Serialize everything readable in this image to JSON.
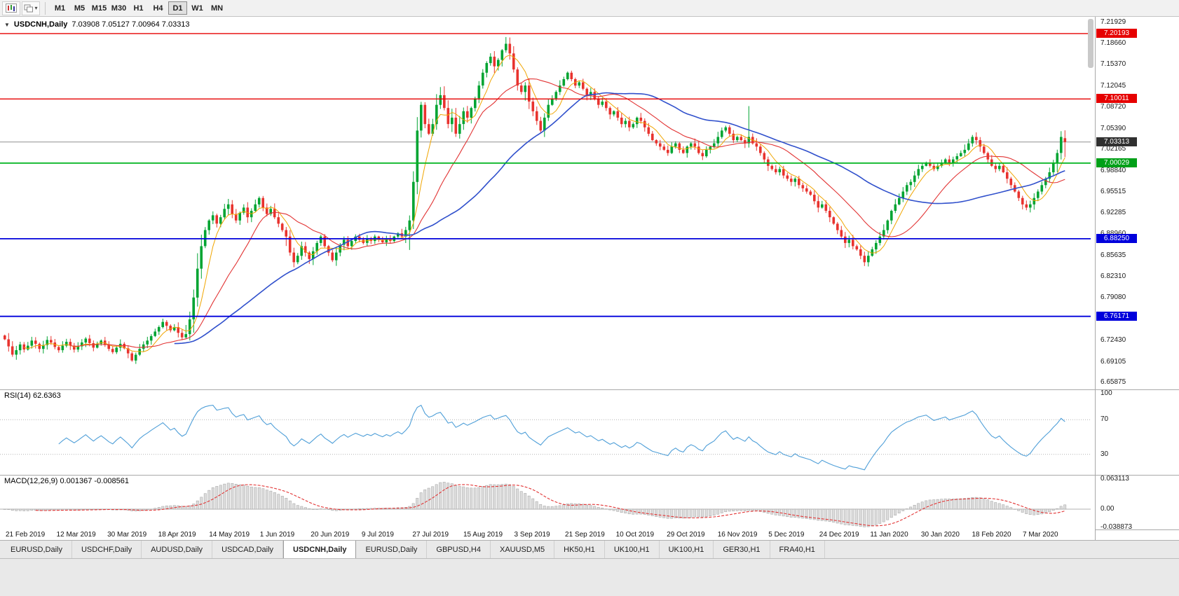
{
  "toolbar": {
    "timeframes": [
      "M1",
      "M5",
      "M15",
      "M30",
      "H1",
      "H4",
      "D1",
      "W1",
      "MN"
    ],
    "active_timeframe": "D1"
  },
  "chart": {
    "symbol_label": "USDCNH,Daily",
    "ohlc_text": "7.03908 7.05127 7.00964 7.03313"
  },
  "chart_data": {
    "type": "candlestick",
    "symbol": "USDCNH",
    "timeframe": "Daily",
    "last_bar": {
      "open": 7.03908,
      "high": 7.05127,
      "low": 7.00964,
      "close": 7.03313
    },
    "ylim": [
      6.648,
      7.228
    ],
    "y_ticks": [
      "7.21929",
      "7.18660",
      "7.15370",
      "7.12045",
      "7.08720",
      "7.05390",
      "7.02165",
      "6.98840",
      "6.95515",
      "6.92285",
      "6.88960",
      "6.85635",
      "6.82310",
      "6.79080",
      "6.75755",
      "6.72430",
      "6.69105",
      "6.65875"
    ],
    "x_labels": [
      "21 Feb 2019",
      "12 Mar 2019",
      "30 Mar 2019",
      "18 Apr 2019",
      "14 May 2019",
      "1 Jun 2019",
      "20 Jun 2019",
      "9 Jul 2019",
      "27 Jul 2019",
      "15 Aug 2019",
      "3 Sep 2019",
      "21 Sep 2019",
      "10 Oct 2019",
      "29 Oct 2019",
      "16 Nov 2019",
      "5 Dec 2019",
      "24 Dec 2019",
      "11 Jan 2020",
      "30 Jan 2020",
      "18 Feb 2020",
      "7 Mar 2020"
    ],
    "closes": [
      6.726,
      6.715,
      6.702,
      6.709,
      6.718,
      6.71,
      6.716,
      6.724,
      6.719,
      6.711,
      6.717,
      6.725,
      6.721,
      6.714,
      6.709,
      6.716,
      6.722,
      6.716,
      6.71,
      6.715,
      6.721,
      6.727,
      6.72,
      6.713,
      6.719,
      6.724,
      6.718,
      6.711,
      6.706,
      6.713,
      6.719,
      6.712,
      6.704,
      6.693,
      6.702,
      6.711,
      6.718,
      6.724,
      6.731,
      6.738,
      6.745,
      6.753,
      6.747,
      6.74,
      6.745,
      6.736,
      6.729,
      6.734,
      6.757,
      6.791,
      6.836,
      6.871,
      6.896,
      6.911,
      6.919,
      6.906,
      6.916,
      6.929,
      6.936,
      6.921,
      6.911,
      6.923,
      6.931,
      6.916,
      6.926,
      6.936,
      6.946,
      6.931,
      6.921,
      6.929,
      6.916,
      6.906,
      6.896,
      6.886,
      6.861,
      6.846,
      6.856,
      6.871,
      6.861,
      6.851,
      6.863,
      6.876,
      6.886,
      6.871,
      6.861,
      6.849,
      6.861,
      6.873,
      6.881,
      6.871,
      6.879,
      6.886,
      6.881,
      6.876,
      6.883,
      6.879,
      6.886,
      6.881,
      6.877,
      6.883,
      6.879,
      6.886,
      6.891,
      6.886,
      6.896,
      6.911,
      6.971,
      7.051,
      7.091,
      7.061,
      7.046,
      7.061,
      7.091,
      7.106,
      7.086,
      7.061,
      7.071,
      7.046,
      7.061,
      7.081,
      7.071,
      7.086,
      7.101,
      7.121,
      7.141,
      7.156,
      7.166,
      7.151,
      7.161,
      7.176,
      7.186,
      7.171,
      7.146,
      7.121,
      7.111,
      7.121,
      7.096,
      7.081,
      7.066,
      7.051,
      7.071,
      7.091,
      7.101,
      7.111,
      7.121,
      7.131,
      7.141,
      7.131,
      7.121,
      7.126,
      7.116,
      7.106,
      7.111,
      7.101,
      7.091,
      7.096,
      7.086,
      7.076,
      7.081,
      7.071,
      7.061,
      7.066,
      7.056,
      7.061,
      7.071,
      7.066,
      7.056,
      7.046,
      7.036,
      7.031,
      7.026,
      7.021,
      7.016,
      7.026,
      7.031,
      7.021,
      7.016,
      7.026,
      7.031,
      7.026,
      7.016,
      7.011,
      7.021,
      7.026,
      7.031,
      7.041,
      7.051,
      7.056,
      7.046,
      7.036,
      7.041,
      7.036,
      7.031,
      7.041,
      7.031,
      7.026,
      7.016,
      7.006,
      6.996,
      6.991,
      6.986,
      6.991,
      6.981,
      6.976,
      6.971,
      6.976,
      6.966,
      6.961,
      6.956,
      6.951,
      6.941,
      6.931,
      6.936,
      6.926,
      6.916,
      6.906,
      6.896,
      6.886,
      6.876,
      6.881,
      6.871,
      6.866,
      6.856,
      6.846,
      6.856,
      6.866,
      6.876,
      6.886,
      6.896,
      6.911,
      6.926,
      6.936,
      6.946,
      6.956,
      6.966,
      6.971,
      6.981,
      6.991,
      6.996,
      7.001,
      6.996,
      6.991,
      6.996,
      7.001,
      7.006,
      7.001,
      7.006,
      7.011,
      7.016,
      7.021,
      7.031,
      7.041,
      7.036,
      7.026,
      7.016,
      7.006,
      6.996,
      6.991,
      6.996,
      6.986,
      6.976,
      6.966,
      6.956,
      6.946,
      6.936,
      6.931,
      6.936,
      6.946,
      6.956,
      6.966,
      6.976,
      6.986,
      7.001,
      7.016,
      7.041,
      7.0331
    ],
    "spikes": [
      {
        "index": 130,
        "high": 7.1965
      },
      {
        "index": 193,
        "high": 7.089
      },
      {
        "index": 223,
        "low": 6.84
      },
      {
        "index": 275,
        "open": 7.03908,
        "high": 7.05127,
        "low": 7.00964
      }
    ],
    "up_color": "#00a432",
    "down_color": "#e8332e",
    "moving_averages": [
      {
        "period": 6,
        "color": "#f0a500",
        "width": 1
      },
      {
        "period": 18,
        "color": "#e23434",
        "width": 1.1
      },
      {
        "period": 45,
        "color": "#3050cc",
        "width": 1.6
      }
    ],
    "levels": [
      {
        "price": 7.20193,
        "label": "7.20193",
        "color": "#e60000",
        "width": 1.4
      },
      {
        "price": 7.10011,
        "label": "7.10011",
        "color": "#e60000",
        "width": 1.4
      },
      {
        "price": 7.03313,
        "label": "7.03313",
        "color": "#909090",
        "badge": "#303030",
        "width": 1,
        "current": true
      },
      {
        "price": 7.00029,
        "label": "7.00029",
        "color": "#00b41e",
        "badge": "#00a018",
        "width": 1.8
      },
      {
        "price": 6.8825,
        "label": "6.88250",
        "color": "#0000dc",
        "width": 1.8
      },
      {
        "price": 6.76171,
        "label": "6.76171",
        "color": "#0000dc",
        "width": 1.8
      }
    ],
    "indicators": {
      "rsi": {
        "label": "RSI(14) 62.6363",
        "period": 14,
        "value": 62.6363,
        "axis_labels": [
          "100",
          "70",
          "30"
        ],
        "level_lines": [
          70,
          30
        ],
        "color": "#4f9fd8"
      },
      "macd": {
        "label": "MACD(12,26,9) 0.001367 -0.008561",
        "fast": 12,
        "slow": 26,
        "signal": 9,
        "macd_value": 0.001367,
        "signal_value": -0.008561,
        "axis_labels": [
          "0.063113",
          "0.00",
          "-0.038873"
        ],
        "histogram_color": "#dcdcdc",
        "histogram_border": "#a0a0a0",
        "signal_color": "#e23434"
      }
    }
  },
  "tabs": {
    "items": [
      "EURUSD,Daily",
      "USDCHF,Daily",
      "AUDUSD,Daily",
      "USDCAD,Daily",
      "USDCNH,Daily",
      "EURUSD,Daily",
      "GBPUSD,H4",
      "XAUUSD,M5",
      "HK50,H1",
      "UK100,H1",
      "UK100,H1",
      "GER30,H1",
      "FRA40,H1"
    ],
    "active_index": 4
  }
}
